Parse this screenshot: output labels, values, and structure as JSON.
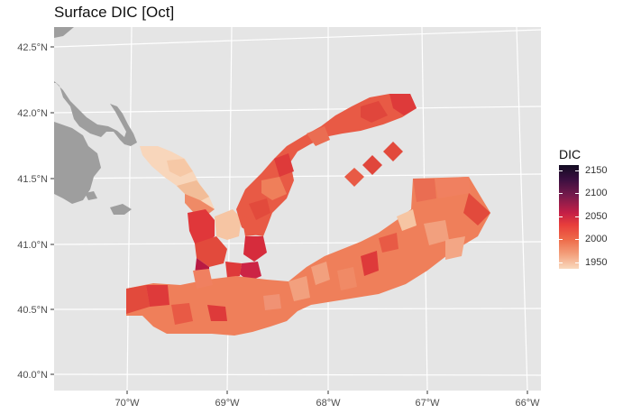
{
  "title": "Surface DIC [Oct]",
  "y_axis_labels": [
    "42.5°N",
    "42.0°N",
    "41.5°N",
    "41.0°N",
    "40.5°N",
    "40.0°N"
  ],
  "x_axis_labels": [
    "70°W",
    "69°W",
    "68°W",
    "67°W",
    "66°W"
  ],
  "legend": {
    "title": "DIC",
    "labels": [
      "2150",
      "2100",
      "2050",
      "2000",
      "1950"
    ]
  },
  "colors": {
    "panel_bg": "#e5e5e5",
    "grid": "#ffffff",
    "land": "#9e9e9e",
    "dic_1950": "#f8d6bb",
    "dic_1975": "#f2a07e",
    "dic_1990": "#ef7f5a",
    "dic_2000": "#e85a45",
    "dic_2015": "#de3a3a",
    "dic_2040": "#c81d45"
  }
}
